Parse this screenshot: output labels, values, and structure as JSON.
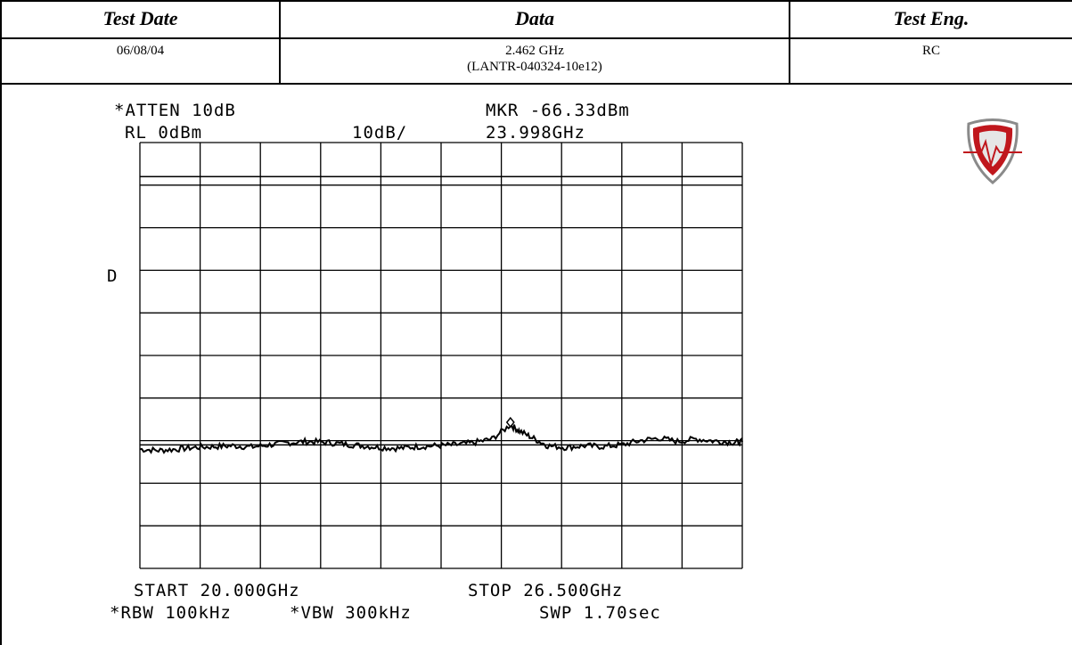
{
  "header": {
    "col1": {
      "title": "Test Date",
      "value": "06/08/04"
    },
    "col2": {
      "title": "Data",
      "value_line1": "2.462 GHz",
      "value_line2": "(LANTR-040324-10e12)"
    },
    "col3": {
      "title": "Test Eng.",
      "value": "RC"
    }
  },
  "analyzer": {
    "atten": "*ATTEN 10dB",
    "ref_level": "RL 0dBm",
    "scale": "10dB/",
    "marker_level": "MKR -66.33dBm",
    "marker_freq": "23.998GHz",
    "detector": "D",
    "start": "START 20.000GHz",
    "stop": "STOP 26.500GHz",
    "rbw": "*RBW 100kHz",
    "vbw": "*VBW 300kHz",
    "sweep": "SWP 1.70sec"
  },
  "logo": {
    "name": "shield-logo",
    "colors": {
      "primary": "#c0171d",
      "secondary": "#8a8a8a"
    }
  },
  "chart_data": {
    "type": "line",
    "x_unit": "GHz",
    "y_unit": "dBm",
    "xlim": [
      20.0,
      26.5
    ],
    "ylim": [
      -100,
      0
    ],
    "grid": true,
    "series": [
      {
        "values": [
          [
            20.0,
            -72.0
          ],
          [
            20.2,
            -72.3
          ],
          [
            20.4,
            -72.0
          ],
          [
            20.6,
            -71.6
          ],
          [
            20.8,
            -71.4
          ],
          [
            21.0,
            -71.2
          ],
          [
            21.2,
            -71.5
          ],
          [
            21.4,
            -71.0
          ],
          [
            21.6,
            -70.5
          ],
          [
            21.8,
            -70.2
          ],
          [
            22.0,
            -70.4
          ],
          [
            22.2,
            -70.8
          ],
          [
            22.4,
            -71.2
          ],
          [
            22.6,
            -71.6
          ],
          [
            22.8,
            -71.8
          ],
          [
            23.0,
            -71.4
          ],
          [
            23.2,
            -71.2
          ],
          [
            23.4,
            -71.0
          ],
          [
            23.6,
            -70.5
          ],
          [
            23.8,
            -69.6
          ],
          [
            23.998,
            -66.3
          ],
          [
            24.1,
            -67.8
          ],
          [
            24.25,
            -69.5
          ],
          [
            24.4,
            -71.2
          ],
          [
            24.6,
            -71.6
          ],
          [
            24.8,
            -71.2
          ],
          [
            25.0,
            -71.4
          ],
          [
            25.2,
            -71.0
          ],
          [
            25.4,
            -70.0
          ],
          [
            25.6,
            -69.4
          ],
          [
            25.8,
            -70.2
          ],
          [
            26.0,
            -69.6
          ],
          [
            26.2,
            -70.1
          ],
          [
            26.4,
            -70.4
          ],
          [
            26.5,
            -70.3
          ]
        ]
      }
    ],
    "reference_line_dbm": -71,
    "display_line_dbm": -8,
    "marker": {
      "x": 23.998,
      "y": -66.33
    }
  }
}
